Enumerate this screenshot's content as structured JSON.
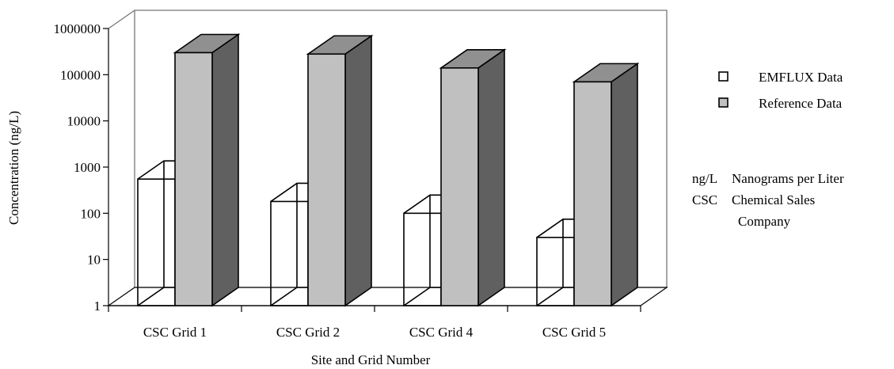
{
  "chart_data": {
    "type": "bar",
    "style": "3d-clustered",
    "categories": [
      "CSC Grid 1",
      "CSC Grid 2",
      "CSC Grid 4",
      "CSC Grid 5"
    ],
    "series": [
      {
        "name": "EMFLUX Data",
        "values": [
          550,
          180,
          100,
          30
        ],
        "color": "#ffffff"
      },
      {
        "name": "Reference Data",
        "values": [
          300000,
          280000,
          140000,
          70000
        ],
        "color": "#c0c0c0"
      }
    ],
    "xlabel": "Site and Grid Number",
    "ylabel": "Concentration (ng/L)",
    "yscale": "log",
    "ylim": [
      1,
      1000000
    ],
    "yticks": [
      "1",
      "10",
      "100",
      "1000",
      "10000",
      "100000",
      "1000000"
    ],
    "grid": false,
    "legend_position": "right",
    "colors": {
      "series2_side": "#606060",
      "series2_top": "#909090",
      "outline": "#000000"
    }
  },
  "notes": [
    {
      "abbr": "ng/L",
      "text": "Nanograms per Liter"
    },
    {
      "abbr": "CSC",
      "text": "Chemical Sales"
    }
  ],
  "note_continuation": "Company"
}
